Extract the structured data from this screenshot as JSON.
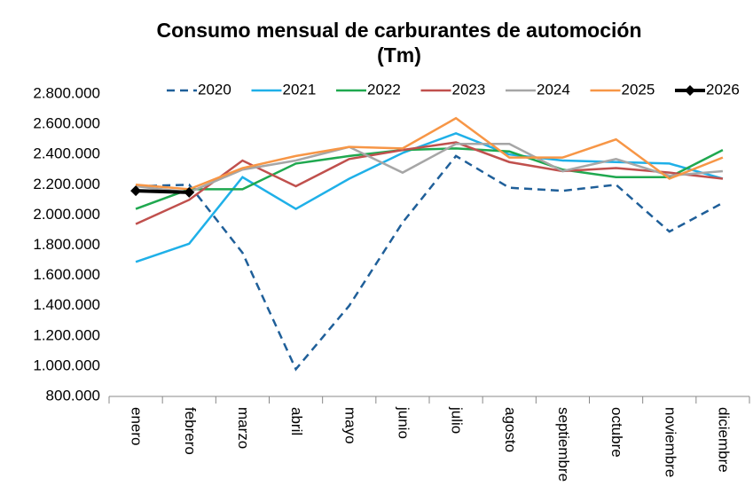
{
  "chart_data": {
    "type": "line",
    "title": [
      "Consumo mensual de carburantes de automoción",
      "(Tm)"
    ],
    "categories": [
      "enero",
      "febrero",
      "marzo",
      "abril",
      "mayo",
      "junio",
      "julio",
      "agosto",
      "septiembre",
      "octubre",
      "noviembre",
      "diciembre"
    ],
    "series": [
      {
        "name": "2020",
        "color": "#1f5f99",
        "dash": true,
        "values": [
          2190000,
          2200000,
          1750000,
          980000,
          1400000,
          1950000,
          2390000,
          2180000,
          2160000,
          2200000,
          1890000,
          2080000
        ]
      },
      {
        "name": "2021",
        "color": "#1fb0e8",
        "values": [
          1690000,
          1810000,
          2250000,
          2040000,
          2240000,
          2410000,
          2540000,
          2400000,
          2360000,
          2350000,
          2340000,
          2240000
        ]
      },
      {
        "name": "2022",
        "color": "#1fa84f",
        "values": [
          2040000,
          2170000,
          2170000,
          2340000,
          2390000,
          2430000,
          2440000,
          2420000,
          2300000,
          2250000,
          2250000,
          2430000
        ]
      },
      {
        "name": "2023",
        "color": "#c0504d",
        "values": [
          1940000,
          2100000,
          2360000,
          2190000,
          2370000,
          2430000,
          2480000,
          2350000,
          2290000,
          2310000,
          2280000,
          2240000
        ]
      },
      {
        "name": "2024",
        "color": "#a6a6a6",
        "values": [
          2190000,
          2150000,
          2300000,
          2360000,
          2450000,
          2280000,
          2470000,
          2470000,
          2290000,
          2370000,
          2260000,
          2290000
        ]
      },
      {
        "name": "2025",
        "color": "#f79646",
        "values": [
          2200000,
          2170000,
          2310000,
          2390000,
          2450000,
          2440000,
          2640000,
          2380000,
          2380000,
          2500000,
          2240000,
          2380000
        ]
      },
      {
        "name": "2026",
        "color": "#000000",
        "marker": "diamond",
        "values": [
          2160000,
          2150000,
          null,
          null,
          null,
          null,
          null,
          null,
          null,
          null,
          null,
          null
        ]
      }
    ],
    "ylim": [
      800000,
      2800000
    ],
    "yticks": [
      {
        "value": 800000,
        "label": "800.000"
      },
      {
        "value": 1000000,
        "label": "1.000.000"
      },
      {
        "value": 1200000,
        "label": "1.200.000"
      },
      {
        "value": 1400000,
        "label": "1.400.000"
      },
      {
        "value": 1600000,
        "label": "1.600.000"
      },
      {
        "value": 1800000,
        "label": "1.800.000"
      },
      {
        "value": 2000000,
        "label": "2.000.000"
      },
      {
        "value": 2200000,
        "label": "2.200.000"
      },
      {
        "value": 2400000,
        "label": "2.400.000"
      },
      {
        "value": 2600000,
        "label": "2.600.000"
      },
      {
        "value": 2800000,
        "label": "2.800.000"
      }
    ],
    "grid": false,
    "legend": "top"
  }
}
